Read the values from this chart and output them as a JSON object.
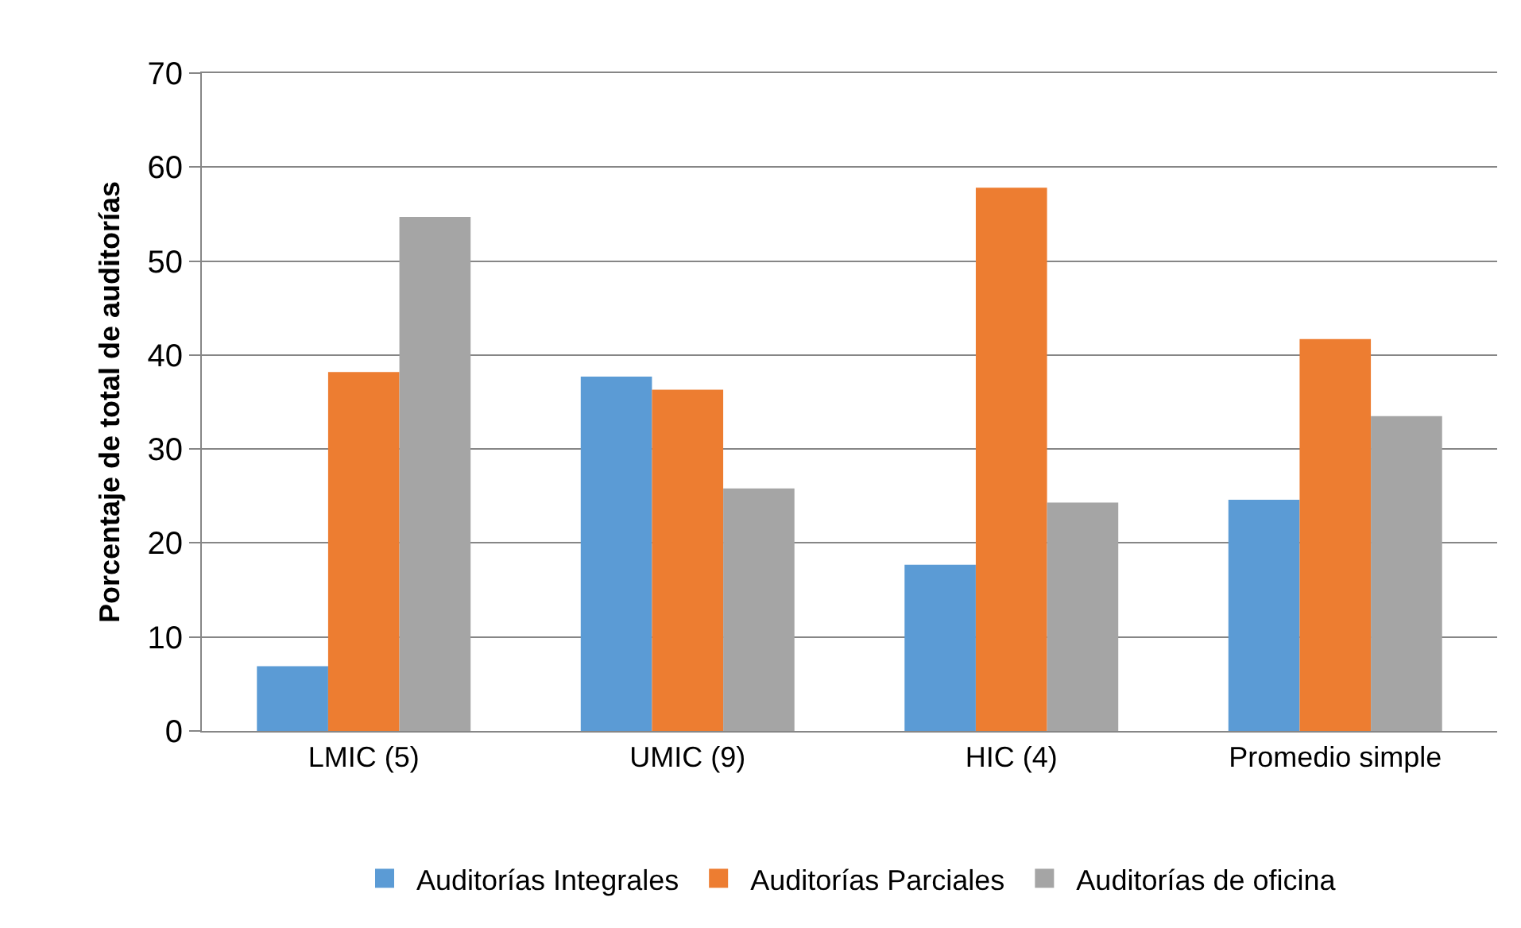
{
  "chart_data": {
    "type": "bar",
    "ylabel": "Porcentaje de total de auditorías",
    "categories": [
      "LMIC (5)",
      "UMIC (9)",
      "HIC (4)",
      "Promedio simple"
    ],
    "series": [
      {
        "name": "Auditorías Integrales",
        "color": "#5b9bd5",
        "values": [
          6.9,
          37.7,
          17.7,
          24.6
        ]
      },
      {
        "name": "Auditorías Parciales",
        "color": "#ed7d31",
        "values": [
          38.2,
          36.3,
          57.8,
          41.7
        ]
      },
      {
        "name": "Auditorías de oficina",
        "color": "#a5a5a5",
        "values": [
          54.7,
          25.8,
          24.3,
          33.5
        ]
      }
    ],
    "ylim": [
      0,
      70
    ],
    "yticks": [
      0,
      10,
      20,
      30,
      40,
      50,
      60,
      70
    ],
    "grid": "y",
    "legend": "bottom"
  }
}
